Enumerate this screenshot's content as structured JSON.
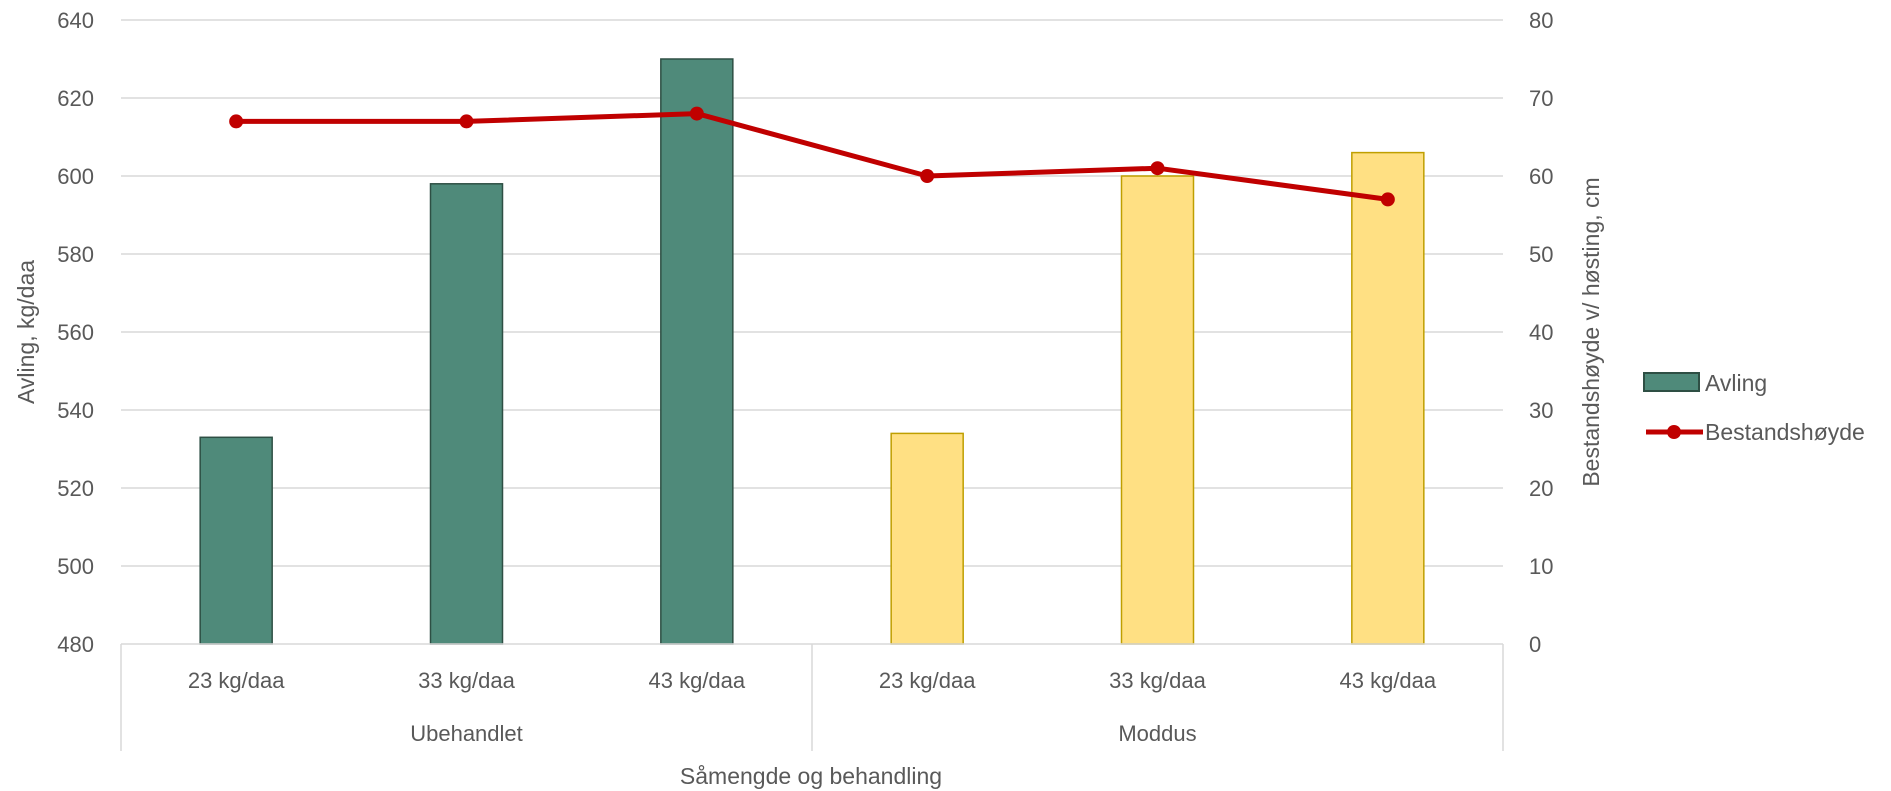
{
  "chart_data": {
    "type": "bar",
    "groups": [
      {
        "label": "Ubehandlet",
        "categories": [
          "23 kg/daa",
          "33 kg/daa",
          "43 kg/daa"
        ]
      },
      {
        "label": "Moddus",
        "categories": [
          "23 kg/daa",
          "33 kg/daa",
          "43 kg/daa"
        ]
      }
    ],
    "categories": [
      "23 kg/daa",
      "33 kg/daa",
      "43 kg/daa",
      "23 kg/daa",
      "33 kg/daa",
      "43 kg/daa"
    ],
    "series": [
      {
        "name": "Avling",
        "type": "bar",
        "axis": "left",
        "values": [
          533,
          598,
          630,
          534,
          600,
          606
        ],
        "colors": [
          "#4f8a7a",
          "#4f8a7a",
          "#4f8a7a",
          "#ffe083",
          "#ffe083",
          "#ffe083"
        ],
        "border_colors": [
          "#2e4f44",
          "#2e4f44",
          "#2e4f44",
          "#bf9f00",
          "#bf9f00",
          "#bf9f00"
        ]
      },
      {
        "name": "Bestandshøyde",
        "type": "line",
        "axis": "right",
        "values": [
          67,
          67,
          68,
          60,
          61,
          57
        ],
        "color": "#c00000"
      }
    ],
    "xlabel": "Såmengde og behandling",
    "ylabel": "Avling, kg/daa",
    "ylabel_right": "Bestandshøyde v/ høsting, cm",
    "ylim": [
      480,
      640
    ],
    "ylim_right": [
      0,
      80
    ],
    "yticks": [
      480,
      500,
      520,
      540,
      560,
      580,
      600,
      620,
      640
    ],
    "yticks_right": [
      0,
      10,
      20,
      30,
      40,
      50,
      60,
      70,
      80
    ],
    "grid": true,
    "legend_position": "right",
    "legend": [
      {
        "name": "Avling",
        "swatch": "bar",
        "color": "#4f8a7a",
        "border": "#2e4f44"
      },
      {
        "name": "Bestandshøyde",
        "swatch": "line-marker",
        "color": "#c00000"
      }
    ]
  }
}
